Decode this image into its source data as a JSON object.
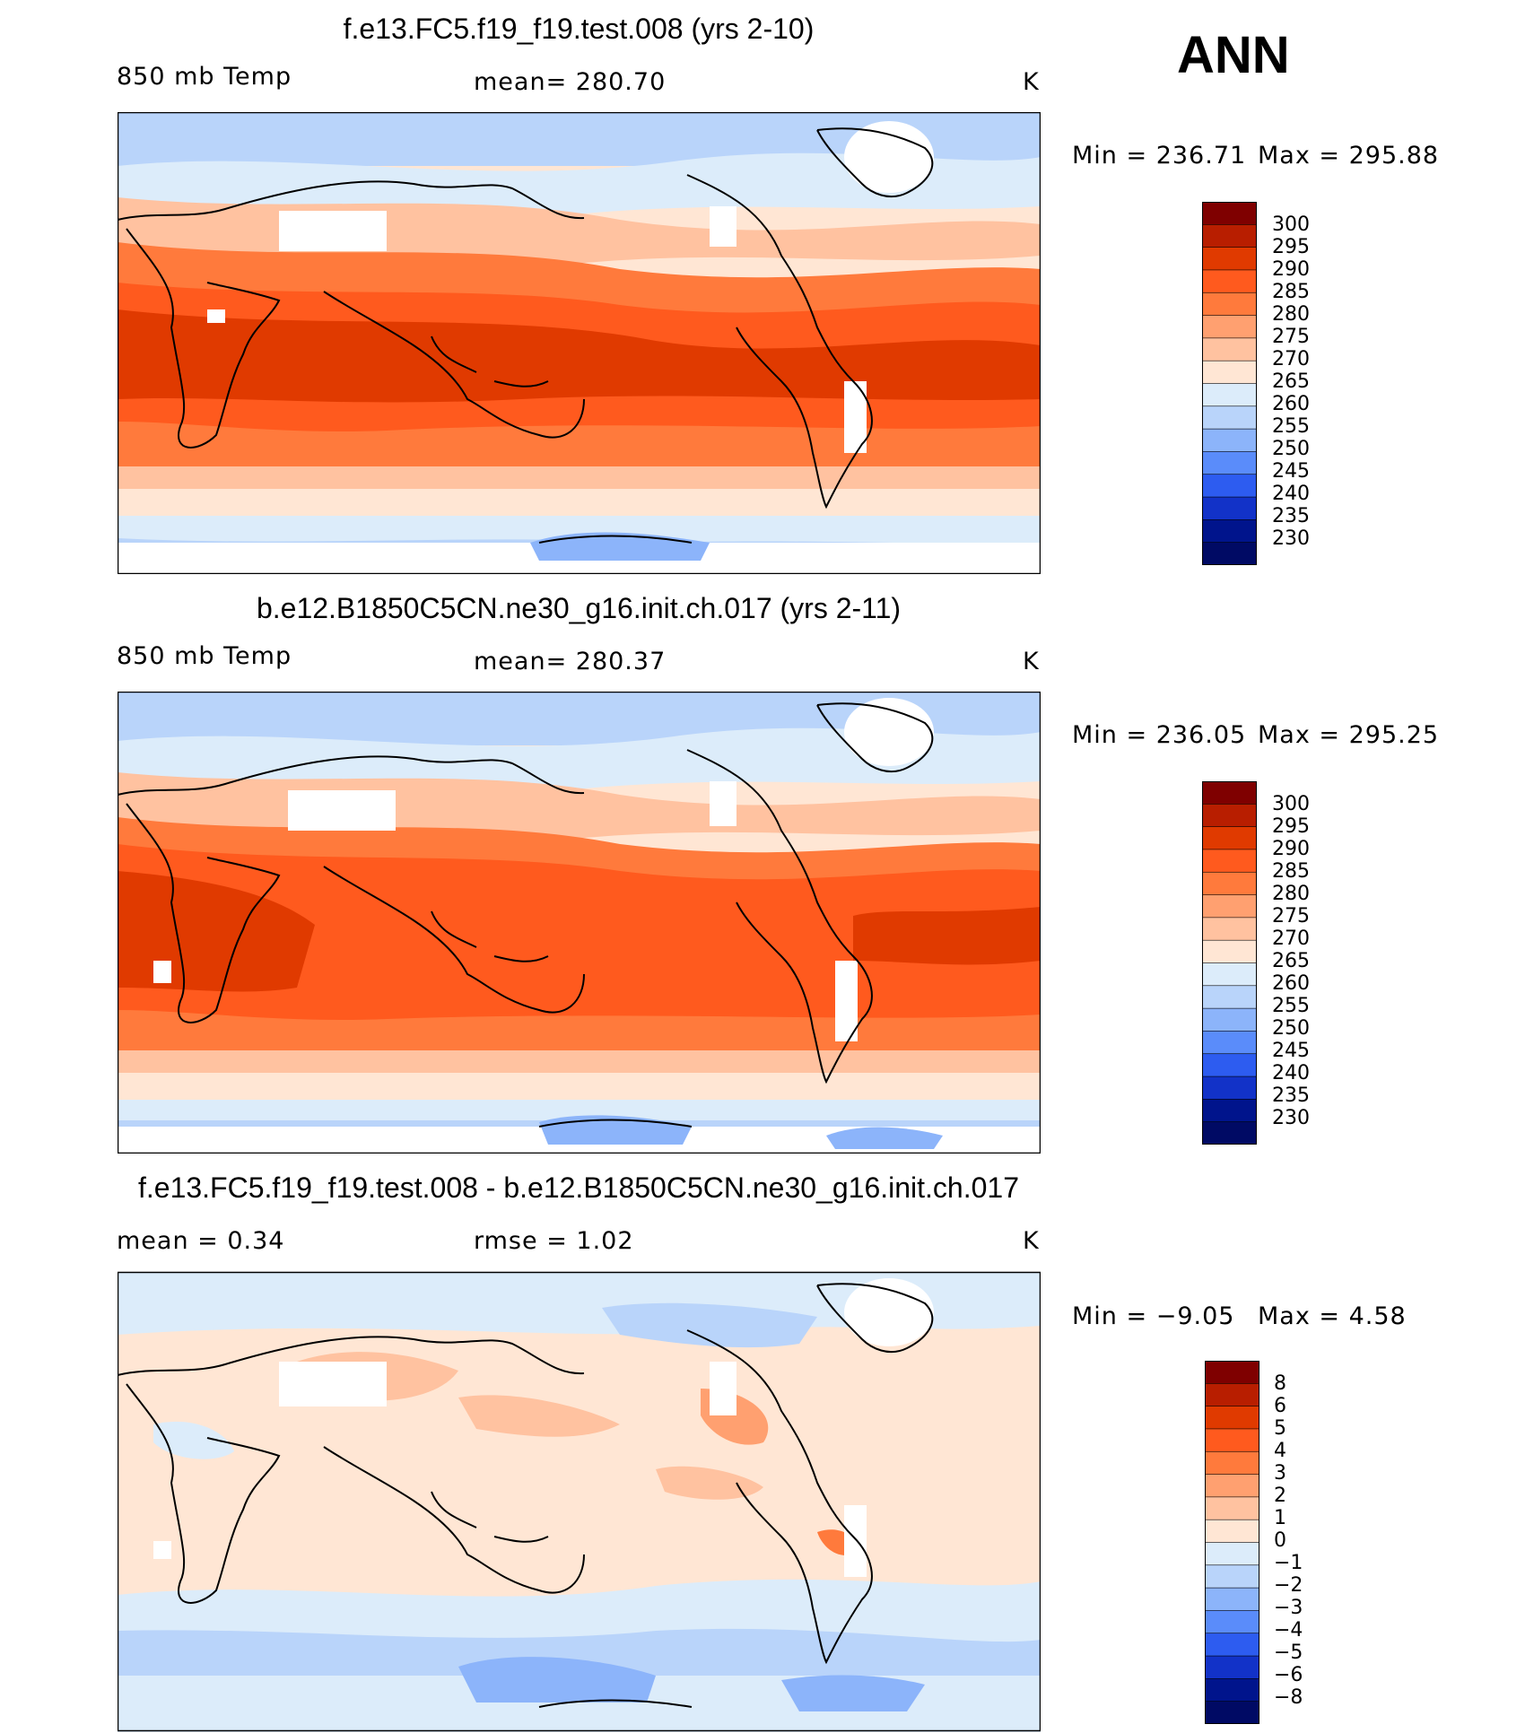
{
  "season": "ANN",
  "panels": [
    {
      "title": "f.e13.FC5.f19_f19.test.008 (yrs 2-10)",
      "left_label": "850 mb Temp",
      "center_label": "mean=  280.70",
      "units": "K",
      "min_label": "Min  =  236.71",
      "max_label": "Max  =  295.88",
      "colorbar_labels": [
        "300",
        "295",
        "290",
        "285",
        "280",
        "275",
        "270",
        "265",
        "260",
        "255",
        "250",
        "245",
        "240",
        "235",
        "230"
      ]
    },
    {
      "title": "b.e12.B1850C5CN.ne30_g16.init.ch.017 (yrs 2-11)",
      "left_label": "850 mb Temp",
      "center_label": "mean=  280.37",
      "units": "K",
      "min_label": "Min  =  236.05",
      "max_label": "Max  =  295.25",
      "colorbar_labels": [
        "300",
        "295",
        "290",
        "285",
        "280",
        "275",
        "270",
        "265",
        "260",
        "255",
        "250",
        "245",
        "240",
        "235",
        "230"
      ]
    },
    {
      "title": "f.e13.FC5.f19_f19.test.008 - b.e12.B1850C5CN.ne30_g16.init.ch.017",
      "left_label": "mean  =     0.34",
      "center_label": "rmse  =     1.02",
      "units": "K",
      "min_label": "Min  =    −9.05",
      "max_label": "Max  =     4.58",
      "colorbar_labels": [
        "8",
        "6",
        "5",
        "4",
        "3",
        "2",
        "1",
        "0",
        "−1",
        "−2",
        "−3",
        "−4",
        "−5",
        "−6",
        "−8"
      ]
    }
  ],
  "colors": {
    "abs_scale": [
      "#7f0000",
      "#b81e00",
      "#e03a00",
      "#ff5a1e",
      "#ff7a3c",
      "#ffa070",
      "#ffc2a0",
      "#ffe6d4",
      "#dcecfa",
      "#b9d4fa",
      "#8cb4fa",
      "#5a8cfa",
      "#2d5cf0",
      "#1232c8",
      "#00148c",
      "#000a64"
    ],
    "diff_scale": [
      "#7f0000",
      "#b81e00",
      "#e03a00",
      "#ff5a1e",
      "#ff7a3c",
      "#ffa070",
      "#ffc2a0",
      "#ffe6d4",
      "#dcecfa",
      "#b9d4fa",
      "#8cb4fa",
      "#5a8cfa",
      "#2d5cf0",
      "#1232c8",
      "#00148c",
      "#000a64"
    ]
  }
}
